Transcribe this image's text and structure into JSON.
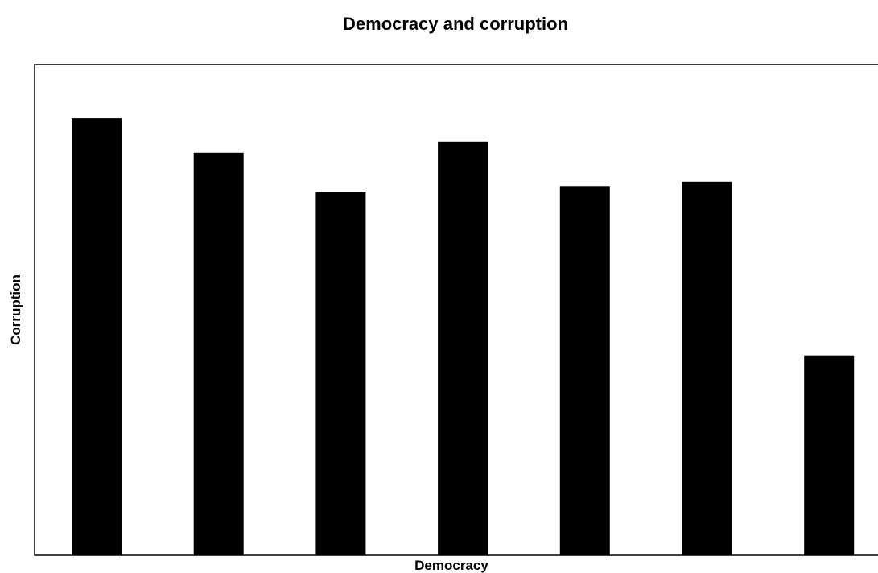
{
  "chart_data": {
    "type": "bar",
    "title": "Democracy and corruption",
    "xlabel": "Democracy",
    "ylabel": "Corruption",
    "ylim": [
      0,
      100
    ],
    "categories": [
      "",
      "",
      "",
      "",
      "",
      "",
      ""
    ],
    "values": [
      89,
      82,
      74.1,
      84.3,
      75.2,
      76.1,
      40.7
    ],
    "grid": false,
    "bar_color": "#000000"
  }
}
